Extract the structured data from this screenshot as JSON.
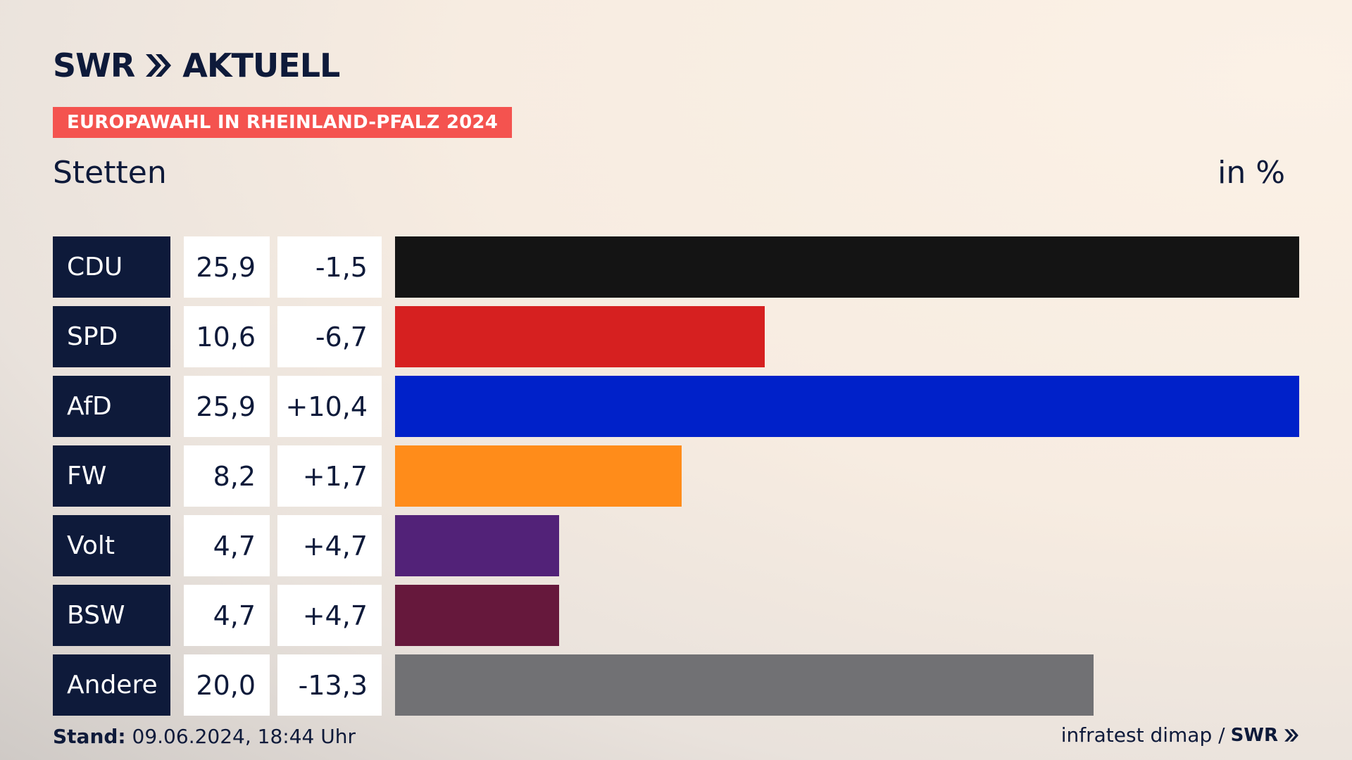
{
  "header": {
    "logo_text": "SWR",
    "logo_suffix": "AKTUELL",
    "tag": "EUROPAWAHL IN RHEINLAND-PFALZ 2024",
    "subtitle": "Stetten",
    "unit": "in %"
  },
  "colors": {
    "navy": "#0e1a3a",
    "tag_red": "#f4534f"
  },
  "chart_data": {
    "type": "bar",
    "orientation": "horizontal",
    "title": "EUROPAWAHL IN RHEINLAND-PFALZ 2024",
    "subtitle": "Stetten",
    "unit": "in %",
    "xlim": [
      0,
      25.9
    ],
    "categories": [
      "CDU",
      "SPD",
      "AfD",
      "FW",
      "Volt",
      "BSW",
      "Andere"
    ],
    "values": [
      25.9,
      10.6,
      25.9,
      8.2,
      4.7,
      4.7,
      20.0
    ],
    "value_labels": [
      "25,9",
      "10,6",
      "25,9",
      "8,2",
      "4,7",
      "4,7",
      "20,0"
    ],
    "diff_labels": [
      "-1,5",
      "-6,7",
      "+10,4",
      "+1,7",
      "+4,7",
      "+4,7",
      "-13,3"
    ],
    "bar_colors": [
      "#141414",
      "#d62020",
      "#0021c9",
      "#ff8c1a",
      "#522278",
      "#66183c",
      "#717174"
    ]
  },
  "footer": {
    "stand_label": "Stand:",
    "stand_value": "09.06.2024, 18:44 Uhr",
    "source": "infratest dimap /",
    "source_logo": "SWR"
  }
}
